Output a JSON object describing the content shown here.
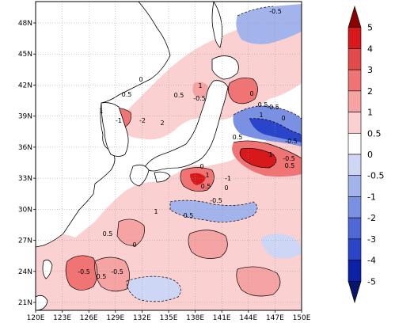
{
  "map": {
    "lon_ticks": [
      "120E",
      "123E",
      "126E",
      "129E",
      "132E",
      "135E",
      "138E",
      "141E",
      "144E",
      "147E",
      "150E"
    ],
    "lat_ticks": [
      "21N",
      "24N",
      "27N",
      "30N",
      "33N",
      "36N",
      "39N",
      "42N",
      "45N",
      "48N"
    ],
    "contour_labels": [
      "-0.5",
      "0",
      "0.5",
      "1",
      "-1",
      "-2",
      "2",
      "0.5",
      "-0.5",
      "1",
      "0",
      "0.5",
      "-0.5",
      "1",
      "0",
      "-0.5",
      "0.5",
      "1",
      "-0.5",
      "0.5",
      "0",
      "1",
      "0.5",
      "0",
      "-1",
      "-0.5",
      "0.5",
      "1",
      "0",
      "0.5",
      "0.5",
      "-0.5",
      "-0.5"
    ],
    "colors": {
      "land": "#ffffff",
      "coast": "#000000",
      "grid": "#9a9a9a"
    }
  },
  "colorbar": {
    "labels": [
      "5",
      "4",
      "3",
      "2",
      "1",
      "0.5",
      "0",
      "-0.5",
      "-1",
      "-2",
      "-3",
      "-4",
      "-5"
    ],
    "colors": [
      "#8b0000",
      "#d7191c",
      "#e34a4a",
      "#f07474",
      "#f5a3a3",
      "#fbd0d0",
      "#ffffff",
      "#cdd6f5",
      "#a3b3ec",
      "#7a90e3",
      "#5068d6",
      "#2a45c9",
      "#0b22a8",
      "#08146e"
    ]
  }
}
